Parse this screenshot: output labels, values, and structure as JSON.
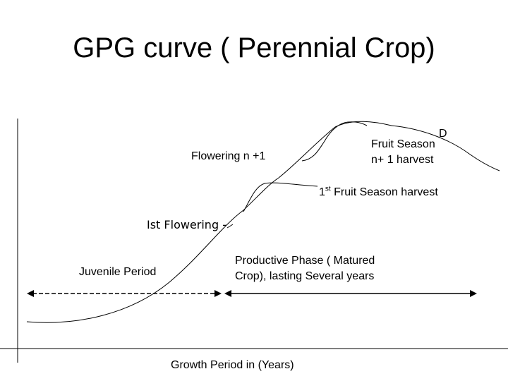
{
  "title": "GPG curve ( Perennial  Crop)",
  "labels": {
    "flowering_n1": "Flowering  n +1",
    "d": "D",
    "fruit_season_line1": "Fruit Season",
    "fruit_season_line2": "n+ 1 harvest",
    "first_fruit_prefix": "1",
    "first_fruit_sup": "st",
    "first_fruit_rest": " Fruit Season  harvest",
    "ist_flowering": "Ist  Flowering",
    "ist_flowering_tail": " -",
    "juvenile_period": "Juvenile Period",
    "productive_line1": "Productive Phase ( Matured",
    "productive_line2": "Crop), lasting Several years",
    "growth_period": "Growth Period  in  (Years)"
  },
  "colors": {
    "line": "#000000",
    "background": "#ffffff"
  }
}
